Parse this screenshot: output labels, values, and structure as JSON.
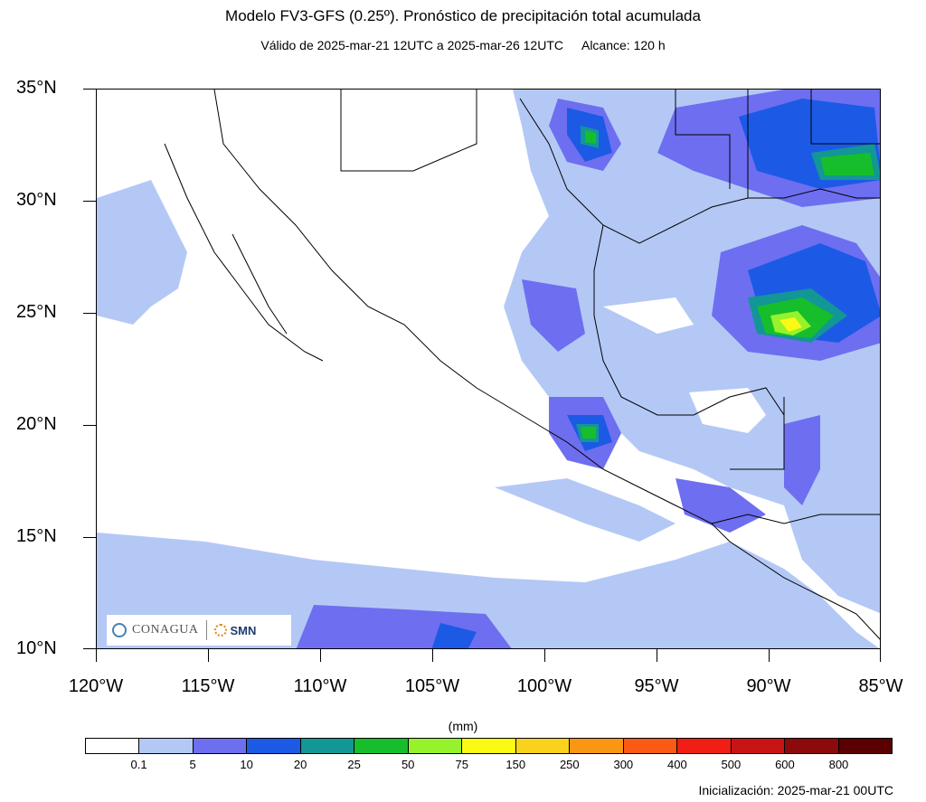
{
  "header": {
    "title": "Modelo FV3-GFS (0.25º). Pronóstico de precipitación total acumulada",
    "valid_text": "Válido de 2025-mar-21 12UTC a 2025-mar-26 12UTC",
    "range_text": "Alcance: 120 h"
  },
  "map": {
    "lat_labels": [
      "35°N",
      "30°N",
      "25°N",
      "20°N",
      "15°N",
      "10°N"
    ],
    "lon_labels": [
      "120°W",
      "115°W",
      "110°W",
      "105°W",
      "100°W",
      "95°W",
      "90°W",
      "85°W"
    ],
    "extent": {
      "lon": [
        -120,
        -85
      ],
      "lat": [
        10,
        35
      ]
    }
  },
  "legend": {
    "units": "(mm)",
    "labels": [
      "0.1",
      "5",
      "10",
      "20",
      "25",
      "50",
      "75",
      "150",
      "250",
      "300",
      "400",
      "500",
      "600",
      "800"
    ],
    "colors": [
      "#ffffff",
      "#b4c8f6",
      "#6e6ef0",
      "#1c5ae6",
      "#129696",
      "#16be2c",
      "#96f22a",
      "#fafa14",
      "#fad21e",
      "#fa9614",
      "#fa5a14",
      "#f01e14",
      "#c81414",
      "#8c0a0a",
      "#5a0000"
    ]
  },
  "footer": {
    "init_text": "Inicialización: 2025-mar-21 00UTC"
  },
  "logos": {
    "conagua": "CONAGUA",
    "smn": "SMN"
  }
}
